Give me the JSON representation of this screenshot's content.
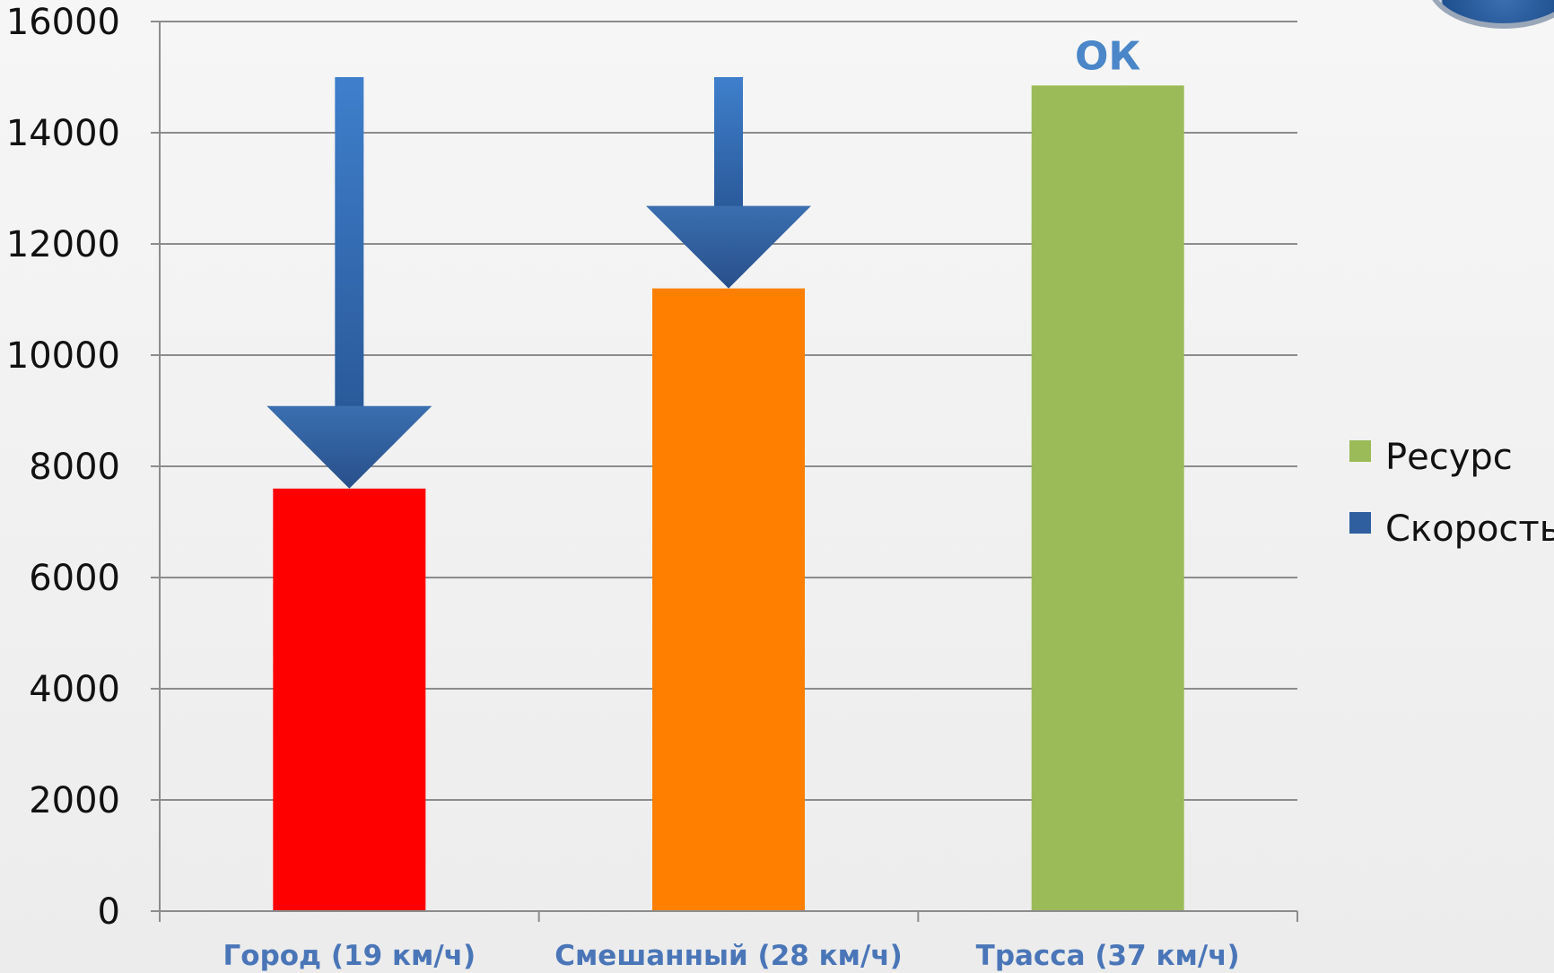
{
  "chart_data": {
    "type": "bar",
    "categories": [
      "Город (19 км/ч)",
      "Смешанный (28 км/ч)",
      "Трасса (37 км/ч)"
    ],
    "series": [
      {
        "name": "Ресурс",
        "values": [
          7600,
          11200,
          14850
        ]
      }
    ],
    "bar_colors": [
      "#ff0000",
      "#ff8000",
      "#9bbb59"
    ],
    "speed_arrows": [
      {
        "category": "Город (19 км/ч)",
        "from": 15000,
        "to": 7600
      },
      {
        "category": "Смешанный (28 км/ч)",
        "from": 15000,
        "to": 11200
      }
    ],
    "annotations": [
      {
        "category": "Трасса (37 км/ч)",
        "text": "ОК"
      }
    ],
    "yticks": [
      0,
      2000,
      4000,
      6000,
      8000,
      10000,
      12000,
      14000,
      16000
    ],
    "ylim": [
      0,
      16000
    ],
    "grid": true,
    "legend": {
      "position": "right",
      "entries": [
        {
          "label": "Ресурс",
          "color": "#9bbb59"
        },
        {
          "label": "Скорость",
          "color": "#2f5f9e"
        }
      ]
    },
    "title": "",
    "xlabel": "",
    "ylabel": ""
  }
}
